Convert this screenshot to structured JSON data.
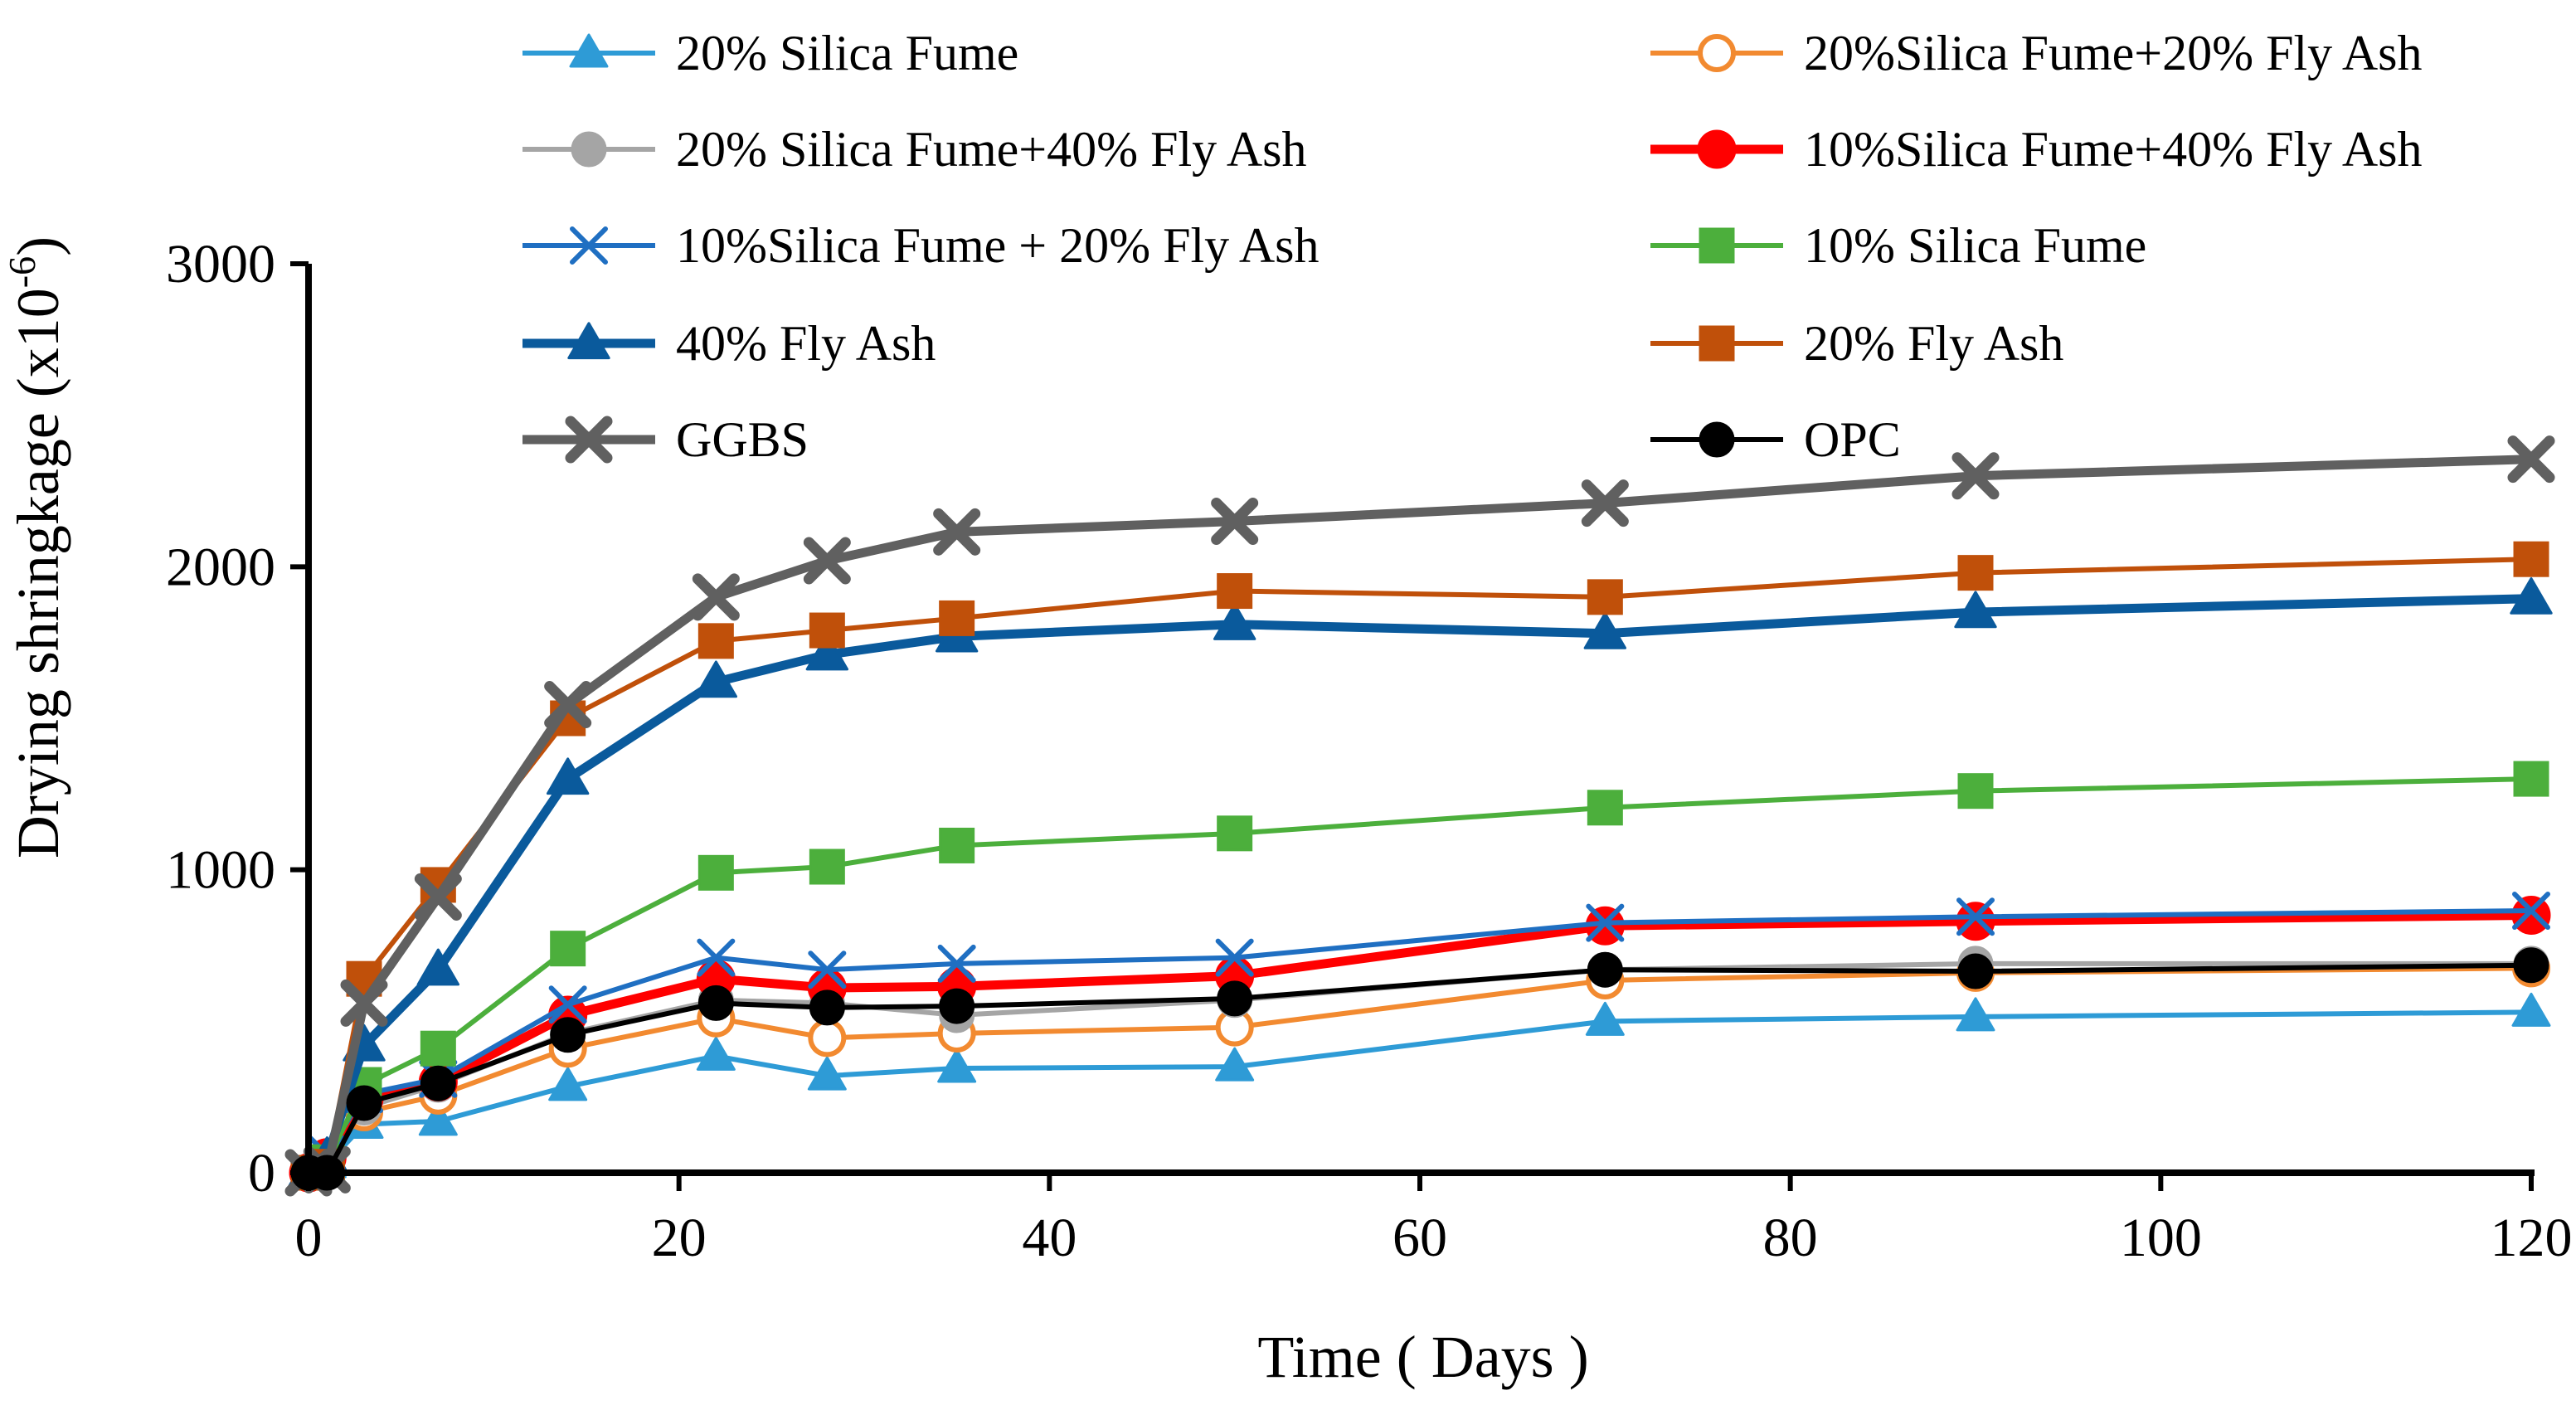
{
  "chart_data": {
    "type": "line",
    "title": "",
    "xlabel": "Time ( Days )",
    "ylabel_main": "Drying shringkage (x10",
    "ylabel_sup": "-6",
    "ylabel_close": ")",
    "xlim": [
      0,
      120
    ],
    "ylim": [
      0,
      3000
    ],
    "xticks": [
      0,
      20,
      40,
      60,
      80,
      100,
      120
    ],
    "yticks": [
      0,
      1000,
      2000,
      3000
    ],
    "x": [
      0,
      1,
      3,
      7,
      14,
      22,
      28,
      35,
      50,
      70,
      90,
      120
    ],
    "legend_position": "top",
    "series": [
      {
        "name": "20% Silica Fume",
        "color": "#2E9BD6",
        "marker": "triangle",
        "filled": true,
        "width": "thin",
        "values": [
          0,
          30,
          160,
          170,
          285,
          385,
          320,
          345,
          350,
          500,
          515,
          530
        ]
      },
      {
        "name": "20%Silica Fume+20% Fly Ash",
        "color": "#F28A30",
        "marker": "circle",
        "filled": false,
        "width": "thin",
        "values": [
          0,
          50,
          200,
          255,
          410,
          510,
          445,
          460,
          480,
          635,
          660,
          675
        ]
      },
      {
        "name": "20% Silica Fume+40% Fly Ash",
        "color": "#A5A5A5",
        "marker": "circle",
        "filled": true,
        "width": "thin",
        "values": [
          0,
          40,
          215,
          290,
          460,
          570,
          560,
          520,
          570,
          670,
          690,
          690
        ]
      },
      {
        "name": "10%Silica Fume+40% Fly Ash",
        "color": "#FF0000",
        "marker": "circle",
        "filled": true,
        "width": "thick",
        "values": [
          0,
          50,
          245,
          300,
          520,
          640,
          610,
          615,
          650,
          815,
          830,
          850
        ]
      },
      {
        "name": "10%Silica Fume + 20% Fly Ash",
        "color": "#1F6FC2",
        "marker": "x",
        "filled": false,
        "width": "thin",
        "values": [
          0,
          60,
          260,
          310,
          555,
          710,
          670,
          690,
          710,
          825,
          845,
          865
        ]
      },
      {
        "name": "10% Silica Fume",
        "color": "#4CAF3C",
        "marker": "square",
        "filled": true,
        "width": "thin",
        "values": [
          0,
          35,
          290,
          410,
          740,
          990,
          1010,
          1080,
          1120,
          1205,
          1260,
          1300
        ]
      },
      {
        "name": "40% Fly Ash",
        "color": "#0A5A9C",
        "marker": "triangle",
        "filled": true,
        "width": "thick",
        "values": [
          0,
          50,
          420,
          670,
          1300,
          1620,
          1710,
          1770,
          1810,
          1780,
          1850,
          1895
        ]
      },
      {
        "name": "20% Fly Ash",
        "color": "#C0500A",
        "marker": "square",
        "filled": true,
        "width": "thin",
        "values": [
          0,
          20,
          640,
          950,
          1500,
          1755,
          1790,
          1830,
          1920,
          1900,
          1980,
          2025
        ]
      },
      {
        "name": "GGBS",
        "color": "#606060",
        "marker": "x",
        "filled": false,
        "width": "thick",
        "values": [
          0,
          10,
          560,
          910,
          1545,
          1900,
          2020,
          2115,
          2150,
          2210,
          2300,
          2355
        ]
      },
      {
        "name": "OPC",
        "color": "#000000",
        "marker": "circle",
        "filled": true,
        "width": "thin",
        "values": [
          0,
          0,
          230,
          295,
          455,
          560,
          545,
          550,
          575,
          670,
          665,
          685
        ]
      }
    ]
  }
}
